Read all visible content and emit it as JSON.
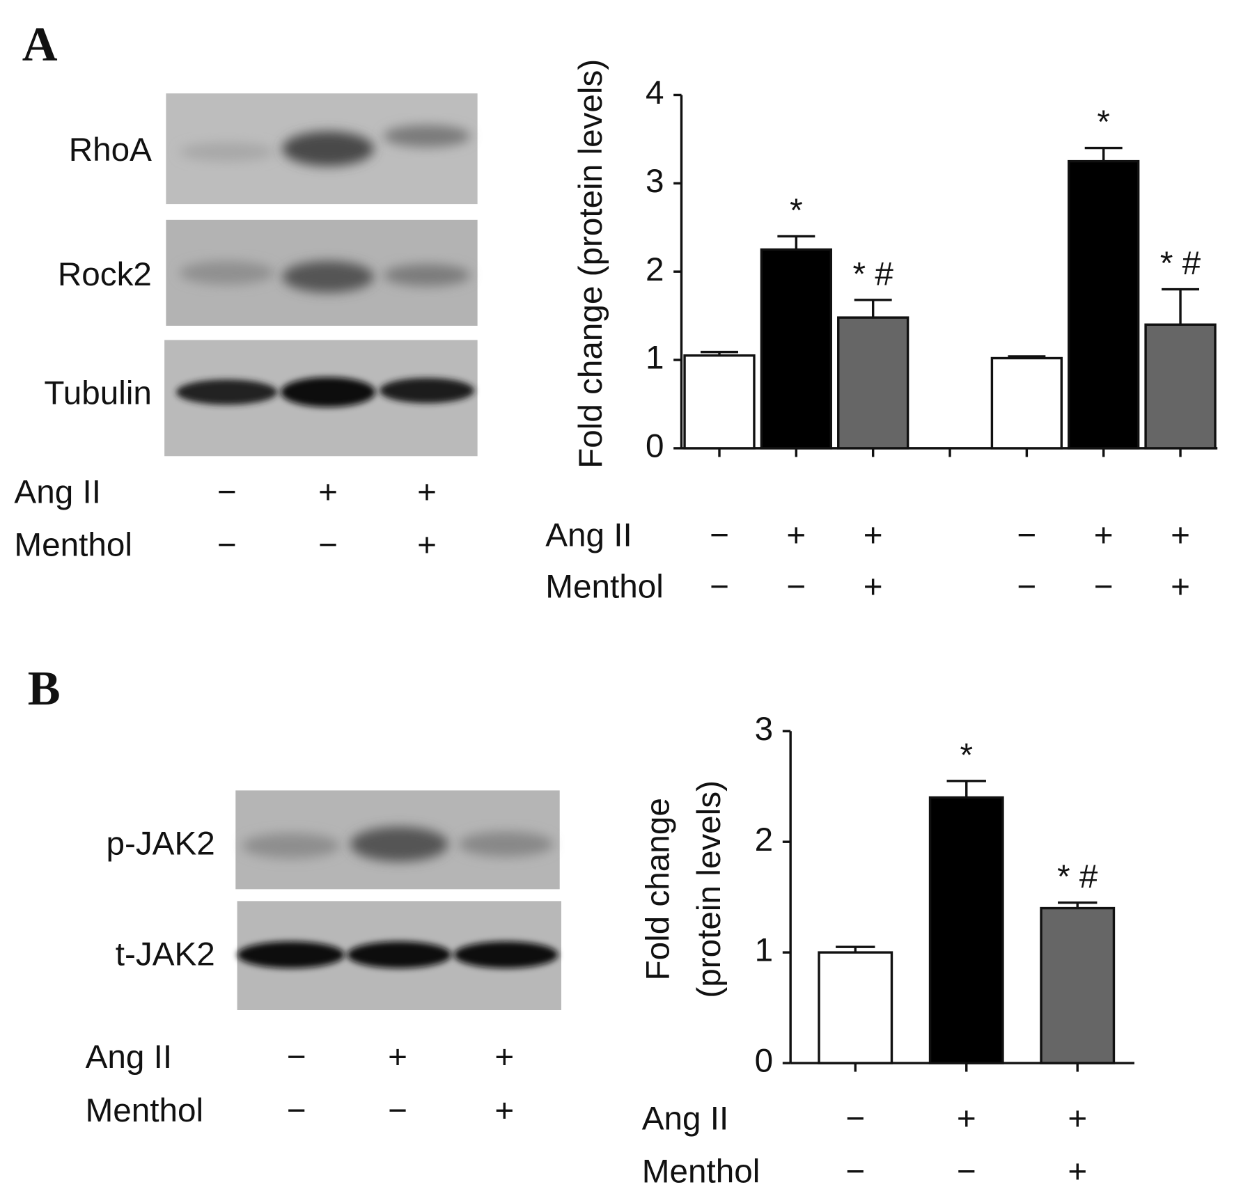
{
  "panels": [
    "A",
    "B"
  ],
  "blots": [
    {
      "rows": [
        "RhoA",
        "Rock2",
        "Tubulin"
      ],
      "treatments": [
        {
          "name": "Ang II",
          "signs": [
            "−",
            "+",
            "+"
          ]
        },
        {
          "name": "Menthol",
          "signs": [
            "−",
            "−",
            "+"
          ]
        }
      ]
    },
    {
      "rows": [
        "p-JAK2",
        "t-JAK2"
      ],
      "treatments": [
        {
          "name": "Ang II",
          "signs": [
            "−",
            "+",
            "+"
          ]
        },
        {
          "name": "Menthol",
          "signs": [
            "−",
            "−",
            "+"
          ]
        }
      ]
    }
  ],
  "chart_data": [
    {
      "type": "bar",
      "ylabel": [
        "Fold change (protein levels)"
      ],
      "categories": [
        null,
        null,
        null,
        null,
        null,
        null,
        null
      ],
      "values": [
        1.05,
        2.25,
        1.48,
        null,
        1.02,
        3.25,
        1.4
      ],
      "errors": [
        0.04,
        0.15,
        0.2,
        null,
        0.02,
        0.15,
        0.4
      ],
      "annotations": [
        null,
        "*",
        "* #",
        null,
        null,
        "*",
        "* #"
      ],
      "colors": [
        "#ffffff",
        "#000000",
        "#666666",
        null,
        "#ffffff",
        "#000000",
        "#666666"
      ],
      "ylim": [
        0,
        4
      ],
      "yticks": [
        0,
        1,
        2,
        3,
        4
      ],
      "treatments": [
        {
          "name": "Ang II",
          "signs": [
            "−",
            "+",
            "+",
            null,
            "−",
            "+",
            "+"
          ]
        },
        {
          "name": "Menthol",
          "signs": [
            "−",
            "−",
            "+",
            null,
            "−",
            "−",
            "+"
          ]
        }
      ]
    },
    {
      "type": "bar",
      "ylabel": [
        "Fold change",
        "(protein levels)"
      ],
      "categories": [
        null,
        null,
        null
      ],
      "values": [
        1.0,
        2.4,
        1.4
      ],
      "errors": [
        0.05,
        0.15,
        0.05
      ],
      "annotations": [
        null,
        "*",
        "* #"
      ],
      "colors": [
        "#ffffff",
        "#000000",
        "#666666"
      ],
      "ylim": [
        0,
        3
      ],
      "yticks": [
        0,
        1,
        2,
        3
      ],
      "treatments": [
        {
          "name": "Ang II",
          "signs": [
            "−",
            "+",
            "+"
          ]
        },
        {
          "name": "Menthol",
          "signs": [
            "−",
            "−",
            "+"
          ]
        }
      ]
    }
  ]
}
